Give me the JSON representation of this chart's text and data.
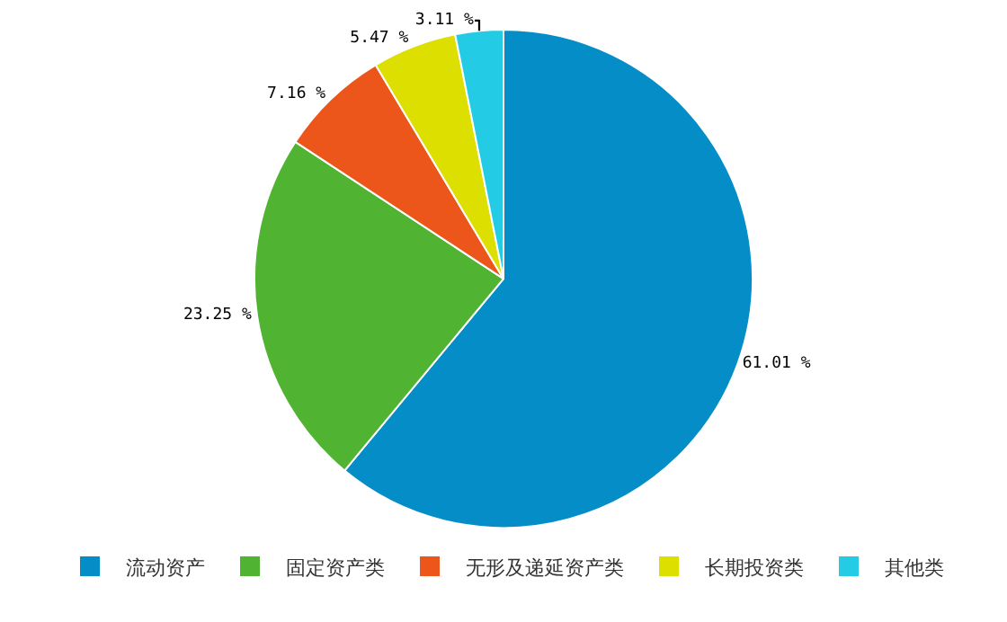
{
  "chart_data": {
    "type": "pie",
    "categories": [
      "流动资产",
      "固定资产类",
      "无形及递延资产类",
      "长期投资类",
      "其他类"
    ],
    "values": [
      61.01,
      23.25,
      7.16,
      5.47,
      3.11
    ],
    "colors": [
      "#058dc7",
      "#50b432",
      "#ed561b",
      "#dddf00",
      "#24cbe5"
    ],
    "value_labels": [
      "61.01 %",
      "23.25 %",
      "7.16 %",
      "5.47 %",
      "3.11 %"
    ],
    "legend": "bottom"
  }
}
